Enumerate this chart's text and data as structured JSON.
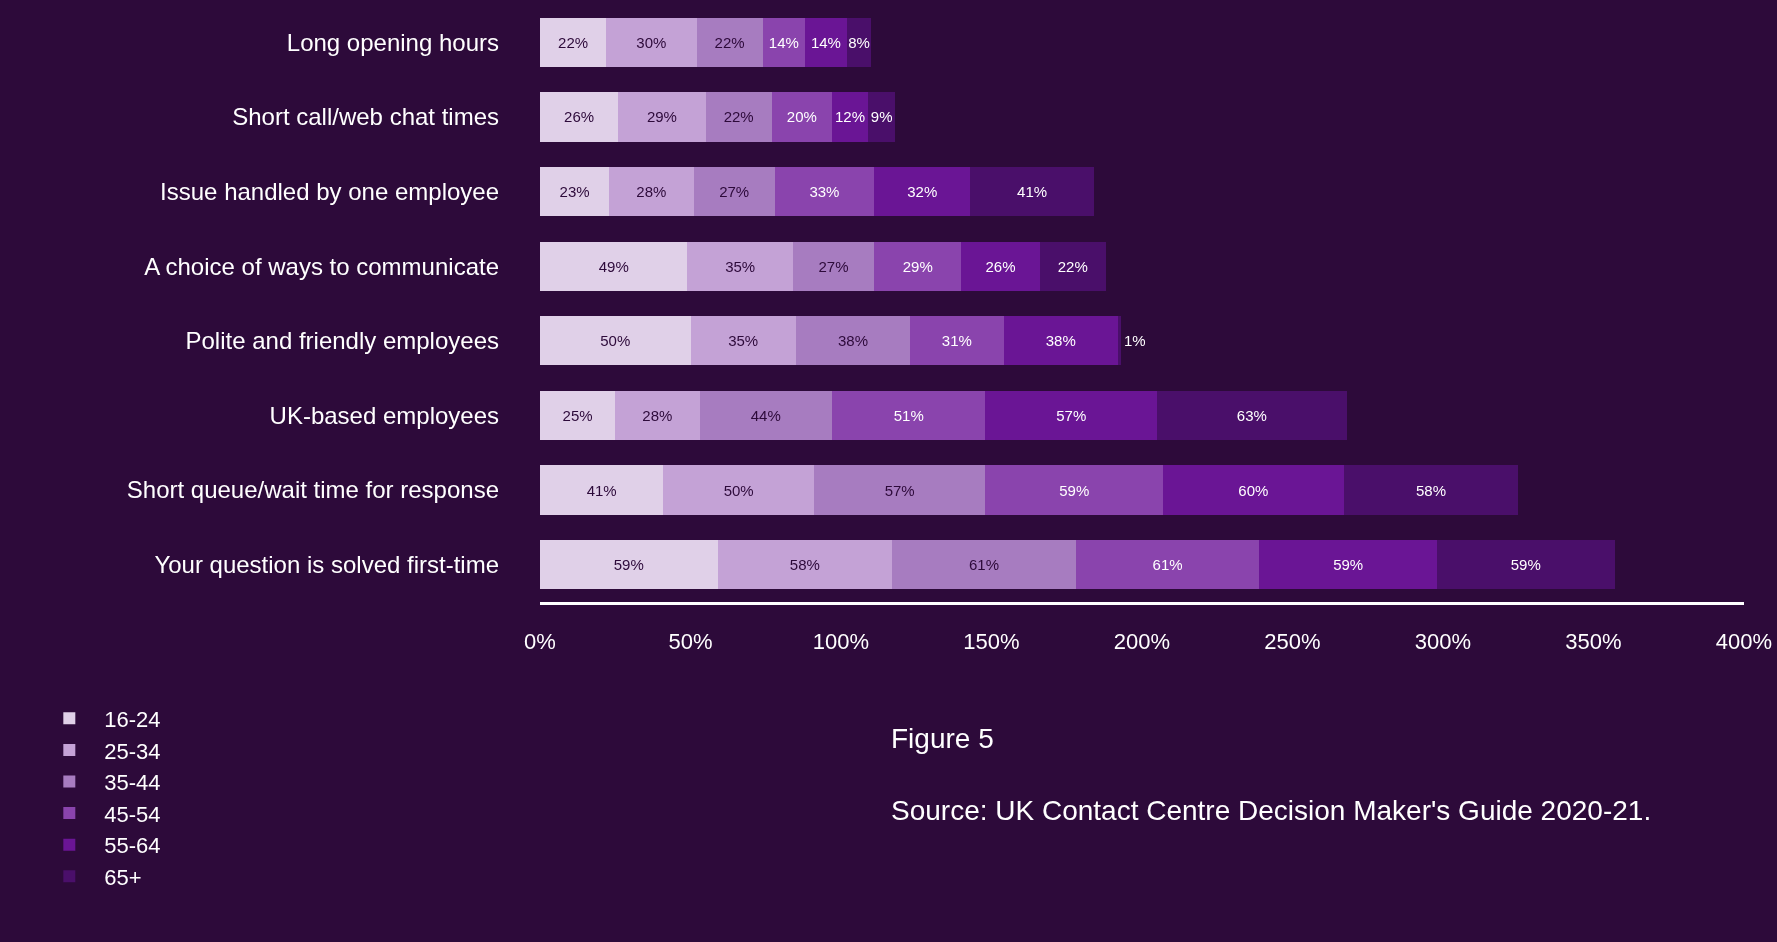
{
  "chart_data": {
    "type": "bar",
    "orientation": "horizontal",
    "stacked": true,
    "categories": [
      "Long opening hours",
      "Short call/web chat times",
      "Issue handled by one employee",
      "A choice of ways to communicate",
      "Polite and friendly employees",
      "UK-based employees",
      "Short queue/wait time for response",
      "Your question is solved first-time"
    ],
    "series": [
      {
        "name": "16-24",
        "color": "#e0d0e8",
        "values": [
          22,
          26,
          23,
          49,
          50,
          25,
          41,
          59
        ],
        "value_labels": [
          "22%",
          "26%",
          "23%",
          "49%",
          "50%",
          "25%",
          "41%",
          "59%"
        ]
      },
      {
        "name": "25-34",
        "color": "#c4a2d6",
        "values": [
          30,
          29,
          28,
          35,
          35,
          28,
          50,
          58
        ],
        "value_labels": [
          "30%",
          "29%",
          "28%",
          "35%",
          "35%",
          "28%",
          "50%",
          "58%"
        ]
      },
      {
        "name": "35-44",
        "color": "#a77cc0",
        "values": [
          22,
          22,
          27,
          27,
          38,
          44,
          57,
          61
        ],
        "value_labels": [
          "22%",
          "22%",
          "27%",
          "27%",
          "38%",
          "44%",
          "57%",
          "61%"
        ]
      },
      {
        "name": "45-54",
        "color": "#8a44ad",
        "values": [
          14,
          20,
          33,
          29,
          31,
          51,
          59,
          61
        ],
        "value_labels": [
          "14%",
          "20%",
          "33%",
          "29%",
          "31%",
          "51%",
          "59%",
          "61%"
        ]
      },
      {
        "name": "55-64",
        "color": "#6a1595",
        "values": [
          14,
          12,
          32,
          26,
          38,
          57,
          60,
          59
        ],
        "value_labels": [
          "14%",
          "12%",
          "32%",
          "26%",
          "38%",
          "57%",
          "60%",
          "59%"
        ]
      },
      {
        "name": "65+",
        "color": "#4a0f6a",
        "values": [
          8,
          9,
          41,
          22,
          1,
          63,
          58,
          59
        ],
        "value_labels": [
          "8%",
          "9%",
          "41%",
          "22%",
          "1%",
          "63%",
          "58%",
          "59%"
        ]
      }
    ],
    "xlim": [
      0,
      400
    ],
    "xticks": [
      {
        "value": 0,
        "label": "0%"
      },
      {
        "value": 50,
        "label": "50%"
      },
      {
        "value": 100,
        "label": "100%"
      },
      {
        "value": 150,
        "label": "150%"
      },
      {
        "value": 200,
        "label": "200%"
      },
      {
        "value": 250,
        "label": "250%"
      },
      {
        "value": 300,
        "label": "300%"
      },
      {
        "value": 350,
        "label": "350%"
      },
      {
        "value": 400,
        "label": "400%"
      }
    ],
    "grid": false,
    "legend": "bottom left",
    "annotations": [
      "Figure 5",
      "Source: UK Contact Centre Decision Maker's Guide 2020-21."
    ]
  }
}
